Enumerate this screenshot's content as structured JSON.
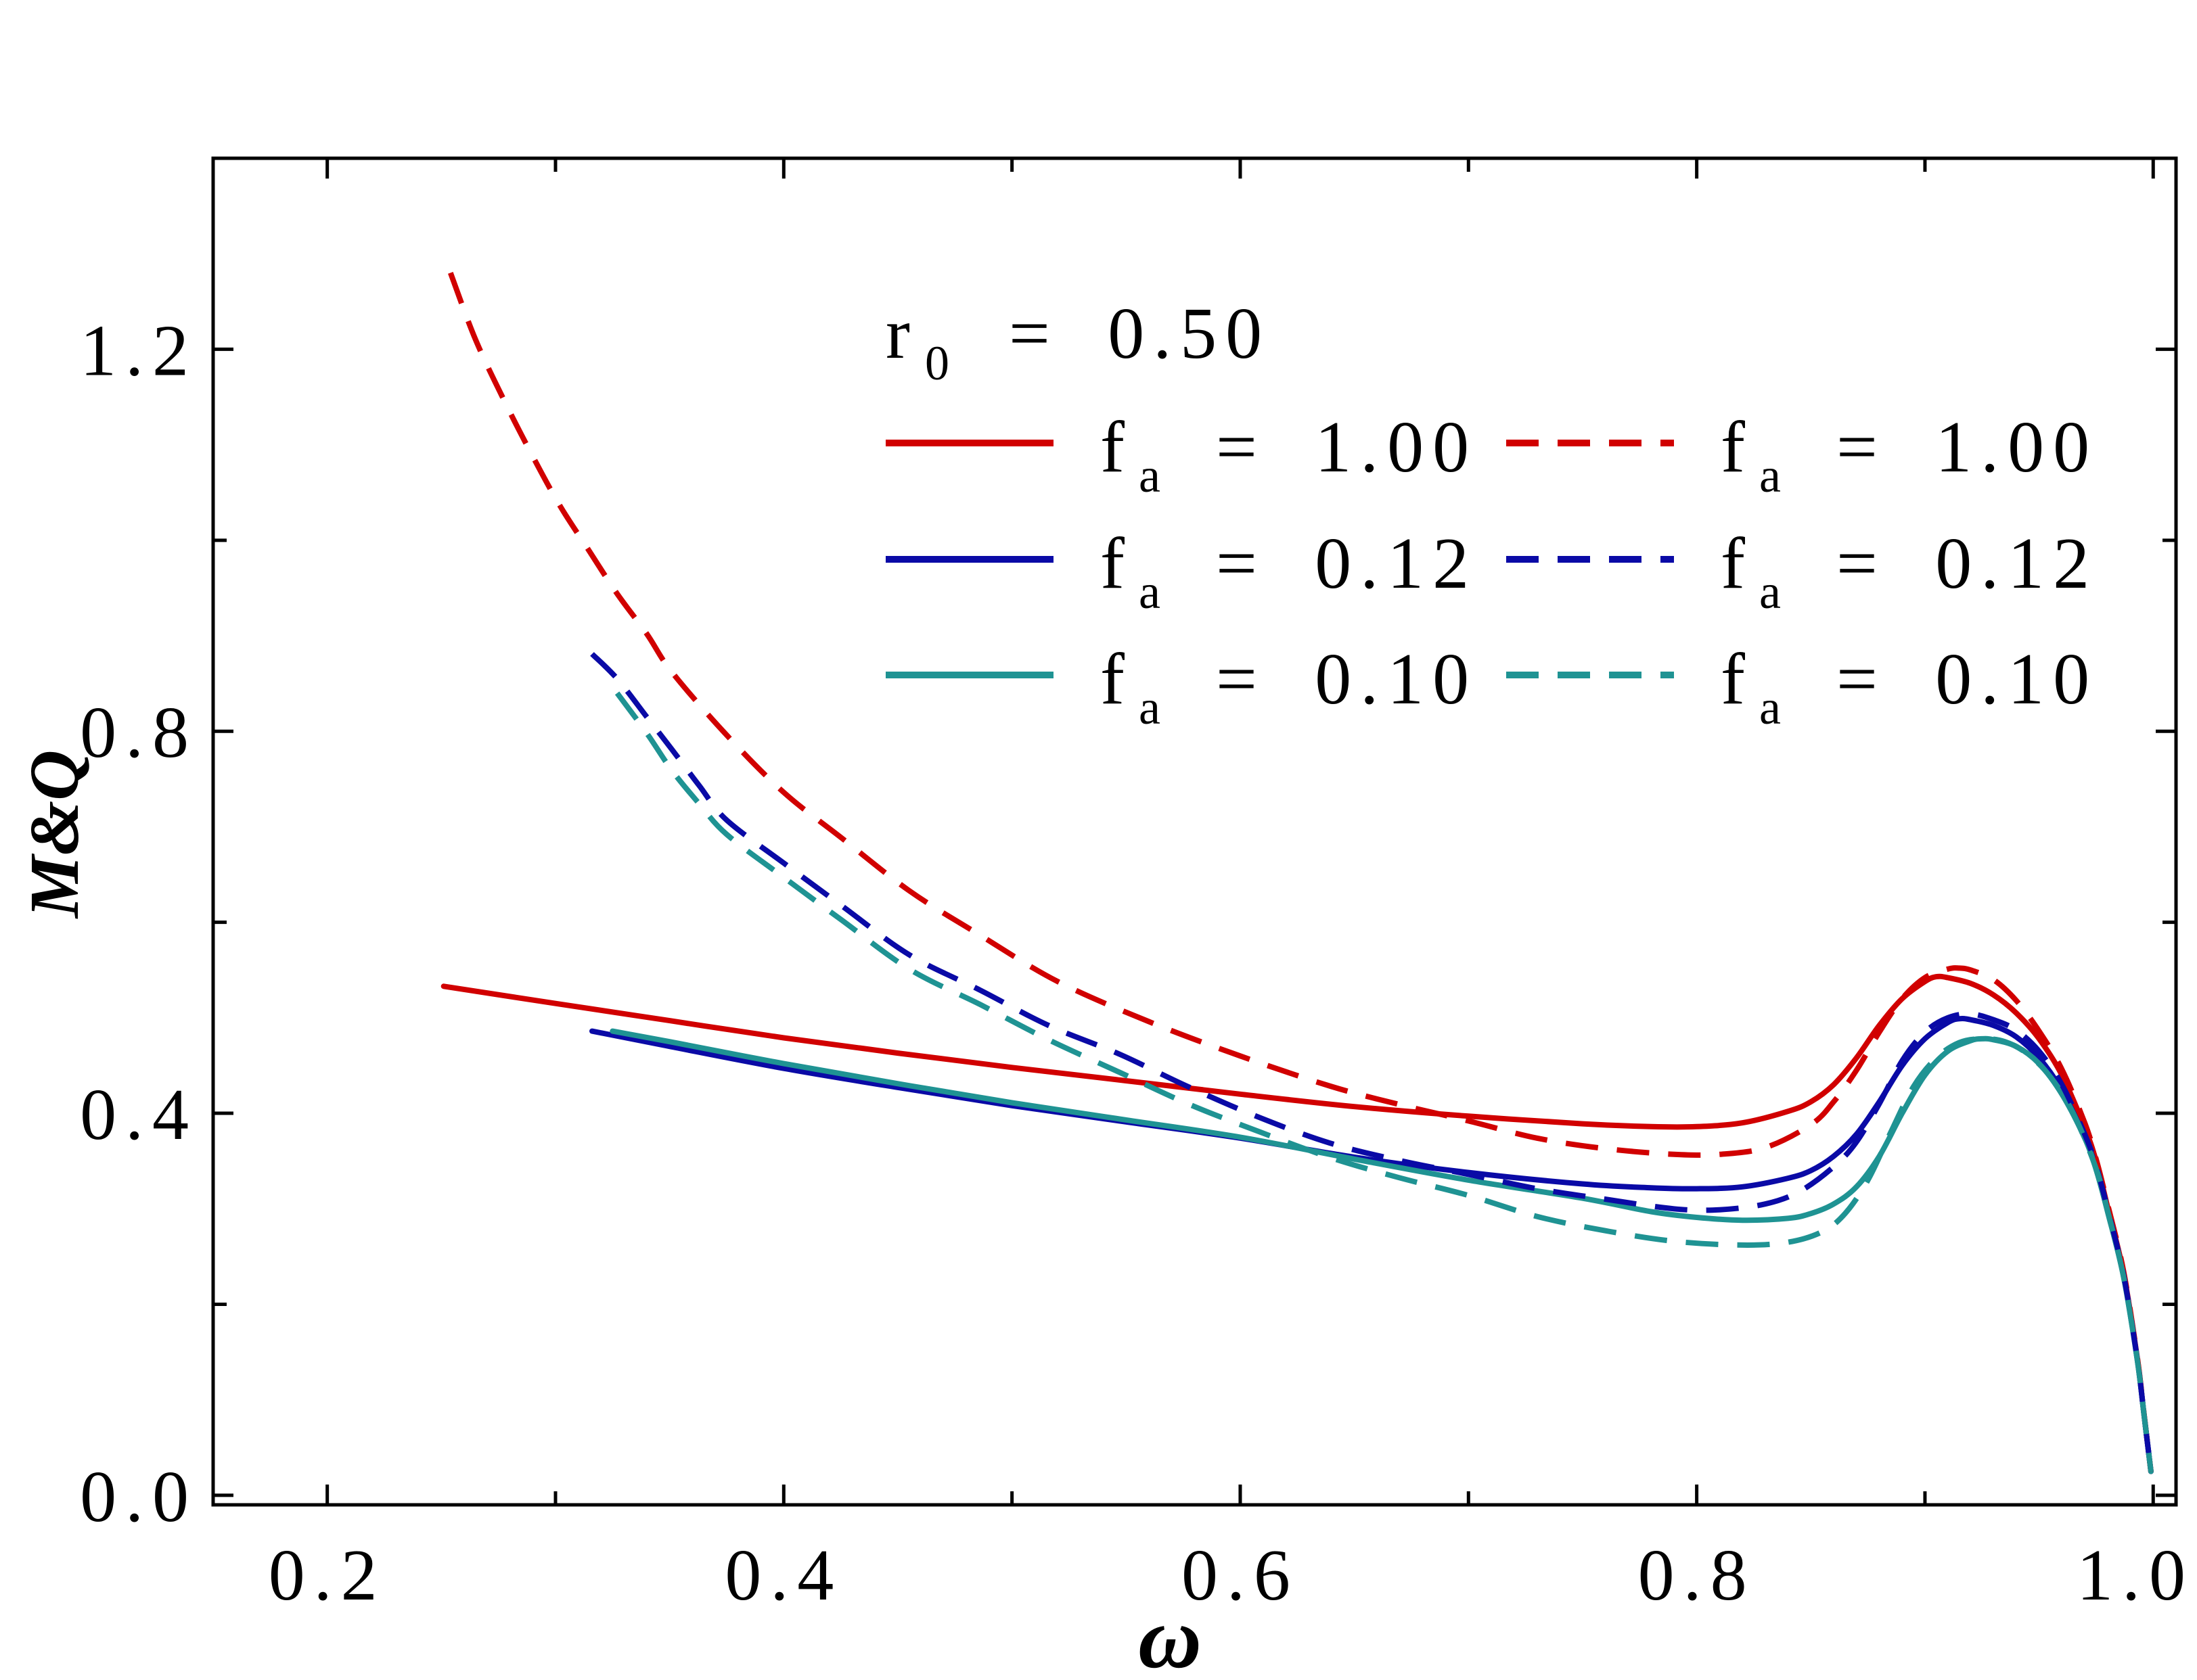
{
  "chart_data": {
    "type": "line",
    "title": "",
    "xlabel": "ω",
    "ylabel": "M&Q",
    "xlim": [
      0.15,
      1.01
    ],
    "ylim": [
      -0.01,
      1.4
    ],
    "grid": false,
    "legend_placement": "top-right",
    "x_ticks": [
      0.2,
      0.4,
      0.6,
      0.8,
      1.0
    ],
    "x_tick_labels": [
      "0.2",
      "0.4",
      "0.6",
      "0.8",
      "1.0"
    ],
    "x_minor_ticks": [
      0.3,
      0.5,
      0.7,
      0.9
    ],
    "y_ticks": [
      0.0,
      0.4,
      0.8,
      1.2
    ],
    "y_tick_labels": [
      "0.0",
      "0.4",
      "0.8",
      "1.2"
    ],
    "y_minor_ticks": [
      0.2,
      0.6,
      1.0
    ],
    "annotation": {
      "symbol": "r",
      "subscript": "0",
      "rest": "= 0.50"
    },
    "series": [
      {
        "label_symbol": "f",
        "label_subscript": "a",
        "label_rest": "= 1.00",
        "dashed": false,
        "color": "#D10000",
        "points": [
          [
            0.251,
            0.533
          ],
          [
            0.3,
            0.515
          ],
          [
            0.35,
            0.497
          ],
          [
            0.4,
            0.479
          ],
          [
            0.45,
            0.463
          ],
          [
            0.5,
            0.448
          ],
          [
            0.55,
            0.434
          ],
          [
            0.6,
            0.42
          ],
          [
            0.65,
            0.407
          ],
          [
            0.7,
            0.397
          ],
          [
            0.75,
            0.389
          ],
          [
            0.78,
            0.386
          ],
          [
            0.8,
            0.386
          ],
          [
            0.82,
            0.39
          ],
          [
            0.84,
            0.402
          ],
          [
            0.85,
            0.412
          ],
          [
            0.86,
            0.43
          ],
          [
            0.87,
            0.458
          ],
          [
            0.88,
            0.492
          ],
          [
            0.89,
            0.52
          ],
          [
            0.9,
            0.538
          ],
          [
            0.905,
            0.543
          ],
          [
            0.91,
            0.542
          ],
          [
            0.92,
            0.536
          ],
          [
            0.93,
            0.524
          ],
          [
            0.94,
            0.505
          ],
          [
            0.95,
            0.478
          ],
          [
            0.96,
            0.44
          ],
          [
            0.97,
            0.385
          ],
          [
            0.975,
            0.35
          ],
          [
            0.98,
            0.302
          ],
          [
            0.987,
            0.233
          ],
          [
            0.993,
            0.144
          ],
          [
            0.996,
            0.084
          ],
          [
            0.999,
            0.025
          ]
        ]
      },
      {
        "label_symbol": "f",
        "label_subscript": "a",
        "label_rest": "= 0.12",
        "dashed": false,
        "color": "#0A0AA6",
        "points": [
          [
            0.316,
            0.486
          ],
          [
            0.35,
            0.47
          ],
          [
            0.4,
            0.447
          ],
          [
            0.45,
            0.427
          ],
          [
            0.5,
            0.408
          ],
          [
            0.55,
            0.391
          ],
          [
            0.6,
            0.374
          ],
          [
            0.65,
            0.354
          ],
          [
            0.7,
            0.338
          ],
          [
            0.75,
            0.326
          ],
          [
            0.78,
            0.322
          ],
          [
            0.8,
            0.321
          ],
          [
            0.82,
            0.323
          ],
          [
            0.84,
            0.332
          ],
          [
            0.85,
            0.34
          ],
          [
            0.86,
            0.355
          ],
          [
            0.87,
            0.378
          ],
          [
            0.88,
            0.412
          ],
          [
            0.89,
            0.45
          ],
          [
            0.9,
            0.478
          ],
          [
            0.91,
            0.495
          ],
          [
            0.915,
            0.499
          ],
          [
            0.92,
            0.498
          ],
          [
            0.93,
            0.492
          ],
          [
            0.94,
            0.48
          ],
          [
            0.95,
            0.458
          ],
          [
            0.96,
            0.424
          ],
          [
            0.97,
            0.375
          ],
          [
            0.975,
            0.343
          ],
          [
            0.98,
            0.298
          ],
          [
            0.987,
            0.23
          ],
          [
            0.993,
            0.143
          ],
          [
            0.996,
            0.084
          ],
          [
            0.999,
            0.025
          ]
        ]
      },
      {
        "label_symbol": "f",
        "label_subscript": "a",
        "label_rest": "= 0.10",
        "dashed": false,
        "color": "#1F9393",
        "points": [
          [
            0.325,
            0.486
          ],
          [
            0.35,
            0.475
          ],
          [
            0.4,
            0.452
          ],
          [
            0.45,
            0.431
          ],
          [
            0.5,
            0.411
          ],
          [
            0.55,
            0.393
          ],
          [
            0.6,
            0.375
          ],
          [
            0.65,
            0.352
          ],
          [
            0.7,
            0.33
          ],
          [
            0.75,
            0.311
          ],
          [
            0.78,
            0.297
          ],
          [
            0.8,
            0.291
          ],
          [
            0.82,
            0.288
          ],
          [
            0.84,
            0.29
          ],
          [
            0.85,
            0.295
          ],
          [
            0.86,
            0.305
          ],
          [
            0.87,
            0.323
          ],
          [
            0.88,
            0.355
          ],
          [
            0.89,
            0.4
          ],
          [
            0.9,
            0.44
          ],
          [
            0.91,
            0.465
          ],
          [
            0.92,
            0.476
          ],
          [
            0.925,
            0.478
          ],
          [
            0.93,
            0.477
          ],
          [
            0.94,
            0.47
          ],
          [
            0.95,
            0.452
          ],
          [
            0.96,
            0.42
          ],
          [
            0.97,
            0.374
          ],
          [
            0.975,
            0.341
          ],
          [
            0.98,
            0.297
          ],
          [
            0.987,
            0.229
          ],
          [
            0.993,
            0.142
          ],
          [
            0.996,
            0.084
          ],
          [
            0.999,
            0.025
          ]
        ]
      },
      {
        "label_symbol": "f",
        "label_subscript": "a",
        "label_rest": "= 1.00",
        "dashed": true,
        "color": "#D10000",
        "points": [
          [
            0.254,
            1.28
          ],
          [
            0.265,
            1.21
          ],
          [
            0.278,
            1.144
          ],
          [
            0.29,
            1.088
          ],
          [
            0.302,
            1.036
          ],
          [
            0.315,
            0.988
          ],
          [
            0.327,
            0.944
          ],
          [
            0.34,
            0.902
          ],
          [
            0.351,
            0.862
          ],
          [
            0.375,
            0.796
          ],
          [
            0.4,
            0.736
          ],
          [
            0.425,
            0.689
          ],
          [
            0.455,
            0.633
          ],
          [
            0.485,
            0.588
          ],
          [
            0.52,
            0.538
          ],
          [
            0.56,
            0.496
          ],
          [
            0.6,
            0.46
          ],
          [
            0.64,
            0.428
          ],
          [
            0.67,
            0.409
          ],
          [
            0.7,
            0.392
          ],
          [
            0.73,
            0.374
          ],
          [
            0.76,
            0.363
          ],
          [
            0.79,
            0.357
          ],
          [
            0.81,
            0.357
          ],
          [
            0.83,
            0.364
          ],
          [
            0.85,
            0.388
          ],
          [
            0.86,
            0.412
          ],
          [
            0.87,
            0.445
          ],
          [
            0.88,
            0.485
          ],
          [
            0.89,
            0.52
          ],
          [
            0.9,
            0.542
          ],
          [
            0.91,
            0.551
          ],
          [
            0.915,
            0.552
          ],
          [
            0.92,
            0.55
          ],
          [
            0.93,
            0.54
          ],
          [
            0.94,
            0.518
          ],
          [
            0.95,
            0.486
          ],
          [
            0.96,
            0.446
          ],
          [
            0.97,
            0.39
          ],
          [
            0.975,
            0.352
          ],
          [
            0.98,
            0.305
          ],
          [
            0.987,
            0.235
          ],
          [
            0.993,
            0.145
          ],
          [
            0.996,
            0.085
          ],
          [
            0.999,
            0.025
          ]
        ]
      },
      {
        "label_symbol": "f",
        "label_subscript": "a",
        "label_rest": "= 0.12",
        "dashed": true,
        "color": "#0A0AA6",
        "points": [
          [
            0.316,
            0.881
          ],
          [
            0.327,
            0.855
          ],
          [
            0.34,
            0.815
          ],
          [
            0.351,
            0.781
          ],
          [
            0.363,
            0.743
          ],
          [
            0.375,
            0.707
          ],
          [
            0.4,
            0.662
          ],
          [
            0.425,
            0.618
          ],
          [
            0.455,
            0.566
          ],
          [
            0.486,
            0.529
          ],
          [
            0.516,
            0.492
          ],
          [
            0.547,
            0.462
          ],
          [
            0.577,
            0.428
          ],
          [
            0.608,
            0.396
          ],
          [
            0.639,
            0.369
          ],
          [
            0.669,
            0.351
          ],
          [
            0.7,
            0.336
          ],
          [
            0.73,
            0.321
          ],
          [
            0.76,
            0.31
          ],
          [
            0.79,
            0.3
          ],
          [
            0.81,
            0.299
          ],
          [
            0.83,
            0.305
          ],
          [
            0.845,
            0.318
          ],
          [
            0.86,
            0.344
          ],
          [
            0.87,
            0.37
          ],
          [
            0.88,
            0.41
          ],
          [
            0.89,
            0.455
          ],
          [
            0.9,
            0.485
          ],
          [
            0.91,
            0.5
          ],
          [
            0.92,
            0.504
          ],
          [
            0.93,
            0.498
          ],
          [
            0.94,
            0.487
          ],
          [
            0.95,
            0.465
          ],
          [
            0.96,
            0.43
          ],
          [
            0.97,
            0.378
          ],
          [
            0.975,
            0.345
          ],
          [
            0.98,
            0.3
          ],
          [
            0.987,
            0.231
          ],
          [
            0.993,
            0.143
          ],
          [
            0.996,
            0.084
          ],
          [
            0.999,
            0.025
          ]
        ]
      },
      {
        "label_symbol": "f",
        "label_subscript": "a",
        "label_rest": "= 0.10",
        "dashed": true,
        "color": "#1F9393",
        "points": [
          [
            0.327,
            0.84
          ],
          [
            0.34,
            0.798
          ],
          [
            0.351,
            0.759
          ],
          [
            0.363,
            0.724
          ],
          [
            0.375,
            0.692
          ],
          [
            0.4,
            0.647
          ],
          [
            0.425,
            0.603
          ],
          [
            0.455,
            0.551
          ],
          [
            0.486,
            0.514
          ],
          [
            0.516,
            0.477
          ],
          [
            0.547,
            0.443
          ],
          [
            0.577,
            0.41
          ],
          [
            0.608,
            0.381
          ],
          [
            0.639,
            0.354
          ],
          [
            0.669,
            0.333
          ],
          [
            0.7,
            0.314
          ],
          [
            0.73,
            0.292
          ],
          [
            0.76,
            0.277
          ],
          [
            0.79,
            0.266
          ],
          [
            0.82,
            0.262
          ],
          [
            0.84,
            0.265
          ],
          [
            0.855,
            0.276
          ],
          [
            0.865,
            0.295
          ],
          [
            0.875,
            0.33
          ],
          [
            0.885,
            0.38
          ],
          [
            0.895,
            0.428
          ],
          [
            0.905,
            0.458
          ],
          [
            0.915,
            0.474
          ],
          [
            0.925,
            0.478
          ],
          [
            0.935,
            0.475
          ],
          [
            0.945,
            0.462
          ],
          [
            0.955,
            0.438
          ],
          [
            0.965,
            0.4
          ],
          [
            0.975,
            0.342
          ],
          [
            0.98,
            0.298
          ],
          [
            0.987,
            0.229
          ],
          [
            0.993,
            0.142
          ],
          [
            0.996,
            0.084
          ],
          [
            0.999,
            0.025
          ]
        ]
      }
    ]
  }
}
